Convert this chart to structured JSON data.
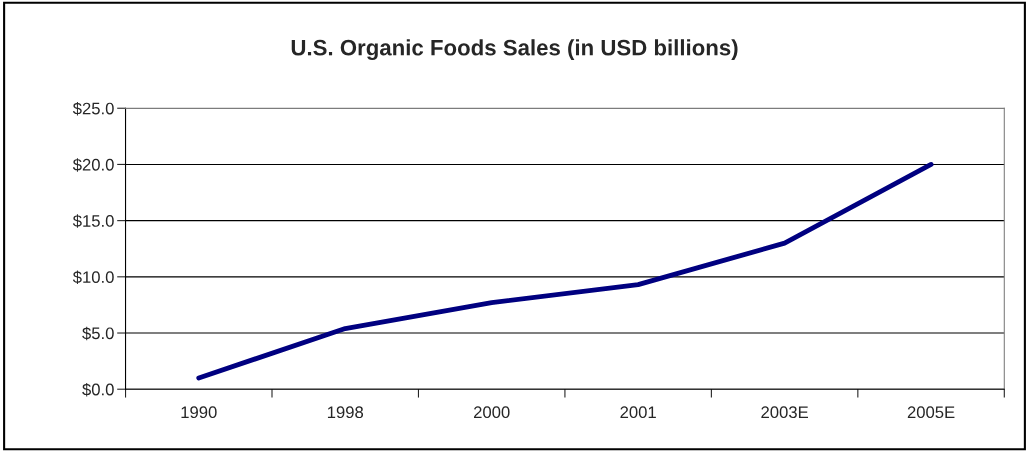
{
  "chart_data": {
    "type": "line",
    "title": "U.S. Organic Foods Sales (in USD billions)",
    "categories": [
      "1990",
      "1998",
      "2000",
      "2001",
      "2003E",
      "2005E"
    ],
    "series": [
      {
        "color": "#000080",
        "values": [
          1.0,
          5.4,
          7.7,
          9.3,
          13.0,
          20.0
        ]
      }
    ],
    "ylim": [
      0,
      25
    ],
    "yticks": [
      {
        "value": 0,
        "label": "$0.0"
      },
      {
        "value": 5,
        "label": "$5.0"
      },
      {
        "value": 10,
        "label": "$10.0"
      },
      {
        "value": 15,
        "label": "$15.0"
      },
      {
        "value": 20,
        "label": "$20.0"
      },
      {
        "value": 25,
        "label": "$25.0"
      }
    ],
    "grid": "y",
    "marker": "none",
    "line_style": "solid"
  }
}
